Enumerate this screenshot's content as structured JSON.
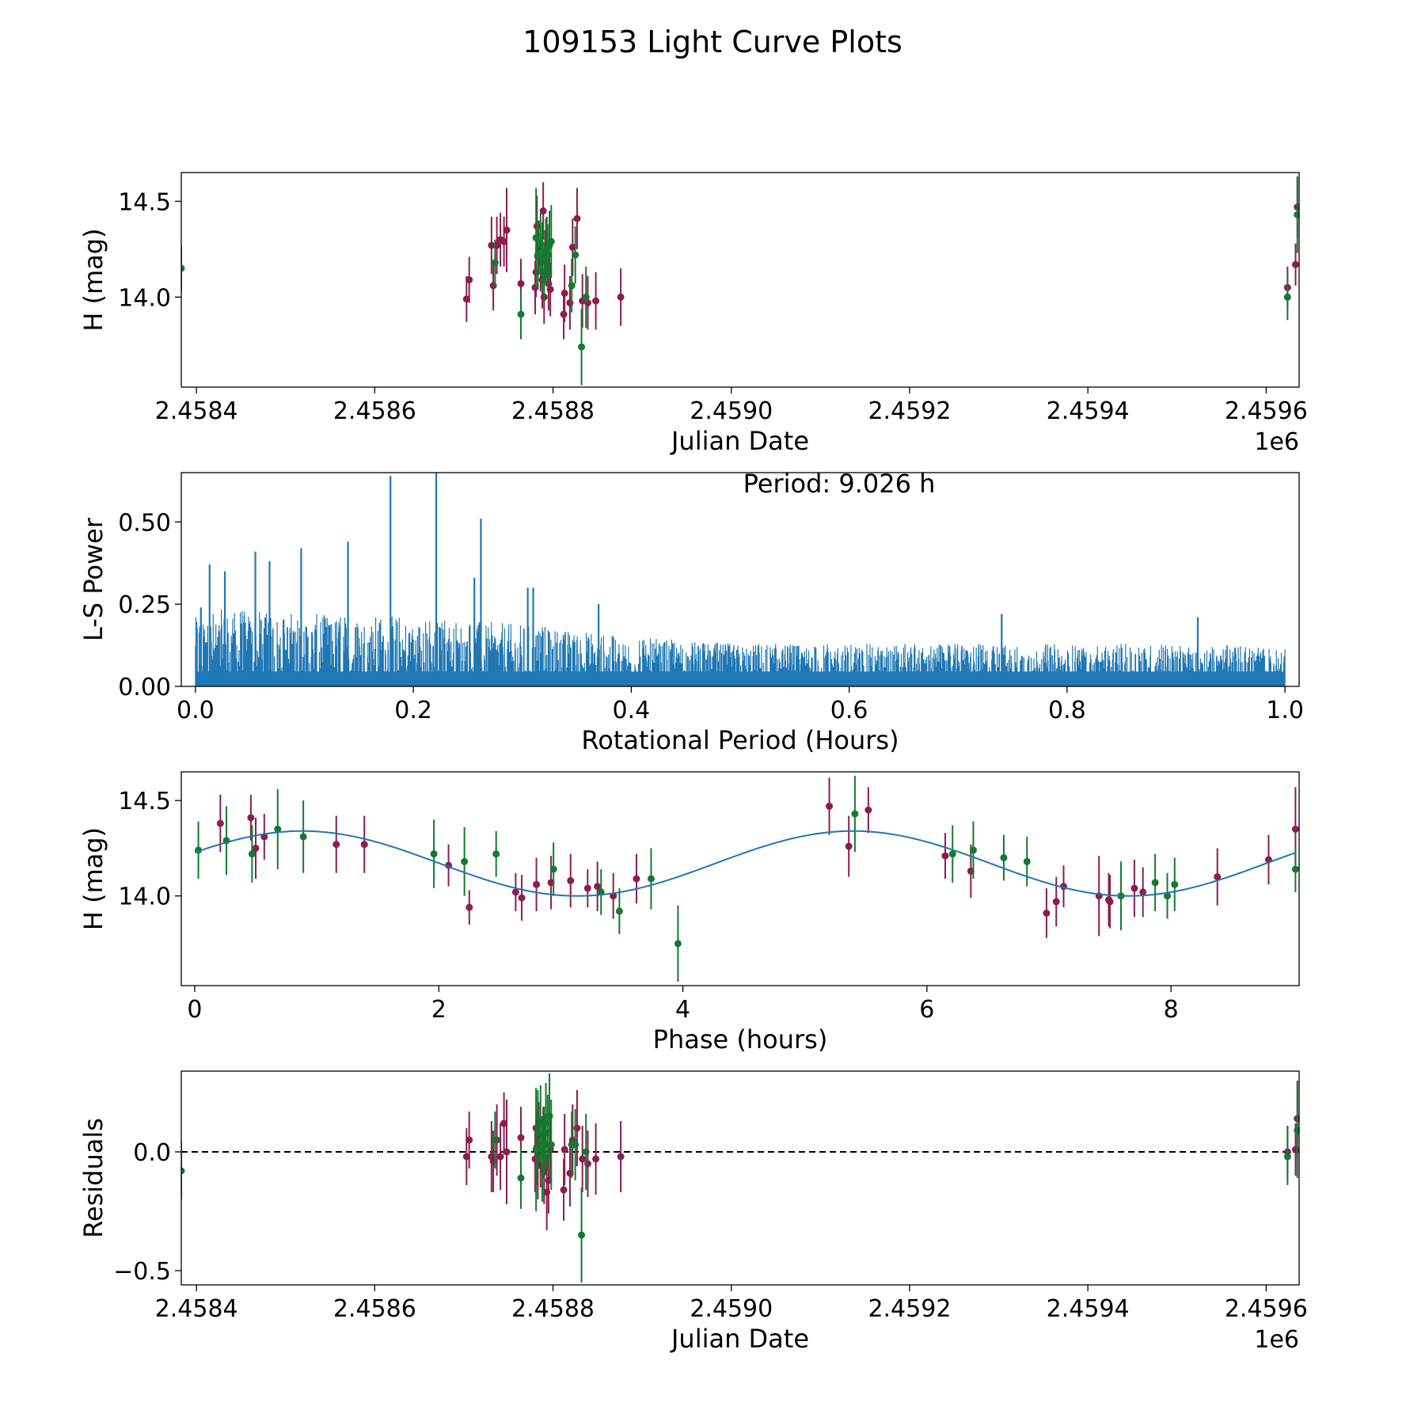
{
  "figure": {
    "title": "109153 Light Curve Plots"
  },
  "colors": {
    "band_r": "#8b1e4f",
    "band_g": "#137a2f",
    "periodogram": "#1f77b4",
    "fit": "#1f77b4",
    "axes": "#000000"
  },
  "chart_data": [
    {
      "id": "lightcurve",
      "type": "scatter",
      "title": "",
      "xlabel": "Julian Date",
      "ylabel": "H (mag)",
      "x_offset_label": "1e6",
      "xlim": [
        2458383,
        2459637
      ],
      "ylim": [
        13.53,
        14.65
      ],
      "xticks": [
        2458400,
        2458600,
        2458800,
        2459000,
        2459200,
        2459400,
        2459600
      ],
      "xtick_labels": [
        "2.4584",
        "2.4586",
        "2.4588",
        "2.4590",
        "2.4592",
        "2.4594",
        "2.4596"
      ],
      "yticks": [
        14.0,
        14.5
      ],
      "ytick_labels": [
        "14.0",
        "14.5"
      ],
      "series": [
        {
          "name": "r",
          "color_key": "band_r",
          "x": [
            2458703,
            2458706,
            2458731,
            2458733,
            2458737,
            2458741,
            2458745,
            2458748,
            2458764,
            2458780,
            2458781,
            2458782,
            2458783,
            2458784,
            2458786,
            2458788,
            2458789,
            2458790,
            2458791,
            2458793,
            2458795,
            2458797,
            2458812,
            2458813,
            2458819,
            2458822,
            2458827,
            2458833,
            2458839,
            2458848,
            2458876,
            2459624,
            2459633,
            2459635
          ],
          "y": [
            13.99,
            14.09,
            14.27,
            14.06,
            14.27,
            14.3,
            14.29,
            14.35,
            14.07,
            14.05,
            14.13,
            14.37,
            14.21,
            14.26,
            14.18,
            14.09,
            14.45,
            14.0,
            14.22,
            14.26,
            14.07,
            14.04,
            13.91,
            14.02,
            13.97,
            14.26,
            14.41,
            13.98,
            13.97,
            13.98,
            14.0,
            14.05,
            14.17,
            14.47
          ],
          "err": [
            0.12,
            0.12,
            0.15,
            0.13,
            0.15,
            0.14,
            0.13,
            0.22,
            0.13,
            0.14,
            0.13,
            0.16,
            0.15,
            0.14,
            0.15,
            0.15,
            0.15,
            0.14,
            0.13,
            0.16,
            0.14,
            0.14,
            0.13,
            0.15,
            0.14,
            0.15,
            0.16,
            0.14,
            0.14,
            0.15,
            0.15,
            0.11,
            0.11,
            0.16
          ]
        },
        {
          "name": "g",
          "color_key": "band_g",
          "x": [
            2458383,
            2458735,
            2458764,
            2458781,
            2458783,
            2458786,
            2458788,
            2458790,
            2458792,
            2458794,
            2458796,
            2458798,
            2458821,
            2458825,
            2458832,
            2458837,
            2459624,
            2459635
          ],
          "y": [
            14.15,
            14.18,
            13.91,
            14.31,
            14.22,
            14.28,
            14.21,
            14.13,
            14.24,
            14.22,
            14.27,
            14.29,
            14.06,
            14.22,
            13.74,
            14.0,
            14.0,
            14.43
          ],
          "err": [
            0.12,
            0.12,
            0.13,
            0.26,
            0.18,
            0.16,
            0.18,
            0.15,
            0.17,
            0.16,
            0.18,
            0.19,
            0.14,
            0.15,
            0.2,
            0.16,
            0.12,
            0.2
          ]
        }
      ]
    },
    {
      "id": "periodogram",
      "type": "line",
      "title": "",
      "xlabel": "Rotational Period (Hours)",
      "ylabel": "L-S Power",
      "annotation": "Period: 9.026 h",
      "xlim": [
        -0.013,
        1.013
      ],
      "ylim": [
        0,
        0.65
      ],
      "xticks": [
        0.0,
        0.2,
        0.4,
        0.6,
        0.8,
        1.0
      ],
      "xtick_labels": [
        "0.0",
        "0.2",
        "0.4",
        "0.6",
        "0.8",
        "1.0"
      ],
      "yticks": [
        0.0,
        0.25,
        0.5
      ],
      "ytick_labels": [
        "0.00",
        "0.25",
        "0.50"
      ],
      "noise_envelope": {
        "x": [
          0.0,
          0.05,
          0.1,
          0.15,
          0.2,
          0.25,
          0.3,
          0.35,
          0.4,
          0.5,
          0.6,
          0.7,
          0.8,
          0.9,
          1.0
        ],
        "y": [
          0.24,
          0.23,
          0.22,
          0.22,
          0.21,
          0.2,
          0.19,
          0.17,
          0.15,
          0.13,
          0.13,
          0.13,
          0.13,
          0.13,
          0.12
        ]
      },
      "peaks": {
        "x": [
          0.005,
          0.013,
          0.027,
          0.055,
          0.068,
          0.097,
          0.14,
          0.179,
          0.221,
          0.262,
          0.256,
          0.305,
          0.31,
          0.37,
          0.74,
          0.92
        ],
        "y": [
          0.24,
          0.37,
          0.35,
          0.41,
          0.38,
          0.42,
          0.44,
          0.64,
          0.67,
          0.51,
          0.33,
          0.3,
          0.3,
          0.25,
          0.22,
          0.21
        ]
      }
    },
    {
      "id": "phased",
      "type": "scatter",
      "title": "",
      "xlabel": "Phase (hours)",
      "ylabel": "H (mag)",
      "xlim": [
        -0.11,
        9.05
      ],
      "ylim": [
        13.53,
        14.65
      ],
      "xticks": [
        0,
        2,
        4,
        6,
        8
      ],
      "xtick_labels": [
        "0",
        "2",
        "4",
        "6",
        "8"
      ],
      "yticks": [
        14.0,
        14.5
      ],
      "ytick_labels": [
        "14.0",
        "14.5"
      ],
      "fit": {
        "mean": 14.17,
        "amplitude": 0.17,
        "period": 4.513,
        "peak_phase": 0.88,
        "x_range": [
          0.0,
          9.026
        ]
      },
      "series": [
        {
          "name": "r",
          "color_key": "band_r",
          "x": [
            0.21,
            0.46,
            0.5,
            0.57,
            1.16,
            1.39,
            2.08,
            2.25,
            2.63,
            2.68,
            2.8,
            2.92,
            3.08,
            3.22,
            3.3,
            3.43,
            3.62,
            5.2,
            5.36,
            5.52,
            6.15,
            6.36,
            6.98,
            7.06,
            7.12,
            7.41,
            7.49,
            7.5,
            7.7,
            7.77,
            8.38,
            8.8,
            9.02
          ],
          "y": [
            14.38,
            14.41,
            14.25,
            14.31,
            14.27,
            14.27,
            14.16,
            13.94,
            14.02,
            13.99,
            14.06,
            14.07,
            14.08,
            14.04,
            14.05,
            14.0,
            14.09,
            14.47,
            14.26,
            14.45,
            14.21,
            14.13,
            13.91,
            13.97,
            14.05,
            14.0,
            13.98,
            13.97,
            14.04,
            14.02,
            14.1,
            14.19,
            14.35
          ]
        },
        {
          "name": "g",
          "color_key": "band_g",
          "x": [
            0.03,
            0.26,
            0.47,
            0.68,
            0.89,
            1.96,
            2.21,
            2.47,
            2.94,
            3.33,
            3.48,
            3.74,
            3.96,
            5.41,
            6.21,
            6.38,
            6.63,
            6.82,
            7.59,
            7.87,
            7.97,
            8.03,
            9.02
          ],
          "y": [
            14.24,
            14.29,
            14.22,
            14.35,
            14.31,
            14.22,
            14.18,
            14.22,
            14.14,
            14.02,
            13.92,
            14.09,
            13.75,
            14.43,
            14.22,
            14.24,
            14.2,
            14.18,
            14.0,
            14.07,
            14.0,
            14.06,
            14.14
          ]
        }
      ]
    },
    {
      "id": "residuals",
      "type": "scatter",
      "title": "",
      "xlabel": "Julian Date",
      "ylabel": "Residuals",
      "x_offset_label": "1e6",
      "xlim": [
        2458383,
        2459637
      ],
      "ylim": [
        -0.56,
        0.34
      ],
      "xticks": [
        2458400,
        2458600,
        2458800,
        2459000,
        2459200,
        2459400,
        2459600
      ],
      "xtick_labels": [
        "2.4584",
        "2.4586",
        "2.4588",
        "2.4590",
        "2.4592",
        "2.4594",
        "2.4596"
      ],
      "yticks": [
        0.0,
        -0.5
      ],
      "ytick_labels": [
        "0.0",
        "−0.5"
      ],
      "zero_line": 0.0,
      "series": [
        {
          "name": "r",
          "color_key": "band_r",
          "x": [
            2458703,
            2458706,
            2458731,
            2458733,
            2458737,
            2458741,
            2458745,
            2458748,
            2458764,
            2458780,
            2458781,
            2458782,
            2458783,
            2458784,
            2458786,
            2458788,
            2458789,
            2458790,
            2458791,
            2458793,
            2458795,
            2458797,
            2458812,
            2458813,
            2458819,
            2458822,
            2458827,
            2458833,
            2458839,
            2458848,
            2458876,
            2459624,
            2459633,
            2459635
          ],
          "y": [
            -0.02,
            0.05,
            -0.02,
            -0.04,
            0.05,
            -0.02,
            0.12,
            0.0,
            0.06,
            -0.03,
            0.1,
            0.02,
            -0.05,
            0.07,
            0.0,
            -0.06,
            0.04,
            -0.08,
            0.03,
            -0.17,
            -0.12,
            0.01,
            -0.16,
            0.01,
            -0.09,
            0.05,
            0.1,
            -0.03,
            -0.05,
            -0.03,
            -0.02,
            0.0,
            0.01,
            0.14
          ]
        },
        {
          "name": "g",
          "color_key": "band_g",
          "x": [
            2458383,
            2458735,
            2458764,
            2458781,
            2458783,
            2458786,
            2458788,
            2458790,
            2458792,
            2458794,
            2458796,
            2458798,
            2458821,
            2458825,
            2458832,
            2458837,
            2459624,
            2459635
          ],
          "y": [
            -0.08,
            0.05,
            -0.11,
            0.01,
            0.08,
            0.12,
            -0.03,
            0.04,
            0.12,
            0.08,
            0.15,
            0.03,
            0.03,
            0.03,
            -0.35,
            0.0,
            -0.02,
            0.09
          ]
        }
      ]
    }
  ]
}
